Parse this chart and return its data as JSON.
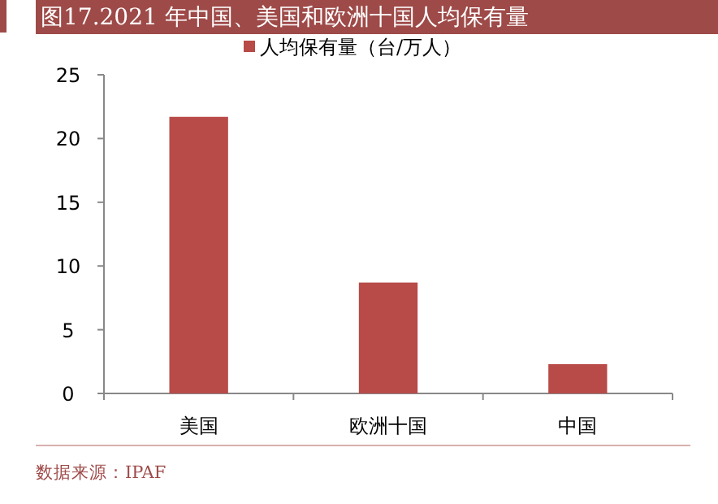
{
  "chart_data": {
    "type": "bar",
    "title": "图17.2021 年中国、美国和欧洲十国人均保有量",
    "categories": [
      "美国",
      "欧洲十国",
      "中国"
    ],
    "series": [
      {
        "name": "人均保有量（台/万人）",
        "color": "#b84a48",
        "values": [
          21.7,
          8.7,
          2.3
        ]
      }
    ],
    "ylim": [
      0,
      25
    ],
    "yticks": [
      0,
      5,
      10,
      15,
      20,
      25
    ],
    "legend": "top",
    "grid": false,
    "annotations": [
      "数据来源：IPAF"
    ]
  }
}
